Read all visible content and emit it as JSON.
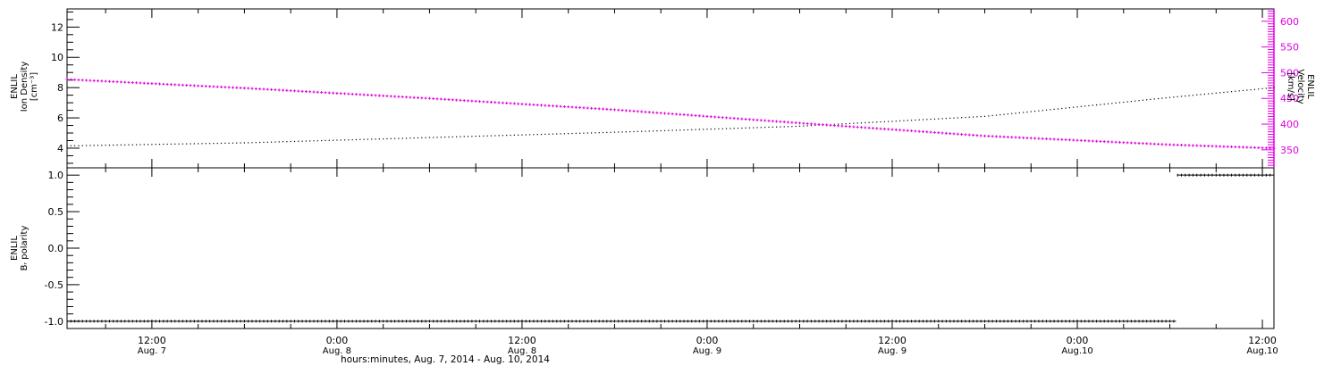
{
  "chart_data": [
    {
      "type": "scatter",
      "panel": "top",
      "x_unit": "hours since Aug. 7, 2014 00:00 UT",
      "xlim": [
        6.5,
        84.75
      ],
      "left_axis": {
        "label_lines": [
          "ENLIL",
          "Ion Density",
          "[cm⁻³]"
        ],
        "ylim": [
          2.7,
          13.2
        ],
        "ticks": [
          4,
          6,
          8,
          10,
          12
        ],
        "tick_labels": [
          "4",
          "6",
          "8",
          "10",
          "12"
        ]
      },
      "right_axis": {
        "label_lines": [
          "ENLIL",
          "Velocity",
          "[km/s]"
        ],
        "ylim": [
          315,
          624
        ],
        "ticks": [
          350,
          400,
          450,
          500,
          550,
          600
        ],
        "tick_labels": [
          "350",
          "400",
          "450",
          "500",
          "550",
          "600"
        ],
        "color": "#e000e0"
      },
      "series": [
        {
          "axis": "left",
          "color": "#000000",
          "points": [
            [
              6.5,
              4.15
            ],
            [
              18,
              4.35
            ],
            [
              30,
              4.7
            ],
            [
              42,
              5.05
            ],
            [
              54,
              5.45
            ],
            [
              66,
              6.1
            ],
            [
              78,
              7.35
            ],
            [
              84.75,
              8.0
            ]
          ]
        },
        {
          "axis": "right",
          "color": "#e000e0",
          "points": [
            [
              6.5,
              487
            ],
            [
              18,
              470
            ],
            [
              30,
              450
            ],
            [
              42,
              428
            ],
            [
              54,
              402
            ],
            [
              66,
              377
            ],
            [
              78,
              360
            ],
            [
              84.75,
              353
            ]
          ]
        }
      ]
    },
    {
      "type": "scatter",
      "panel": "bottom",
      "x_unit": "hours since Aug. 7, 2014 00:00 UT",
      "xlim": [
        6.5,
        84.75
      ],
      "left_axis": {
        "label_lines": [
          "ENLIL",
          "Bᵣ polarity"
        ],
        "ylim": [
          -1.1,
          1.1
        ],
        "ticks": [
          -1.0,
          -0.5,
          0.0,
          0.5,
          1.0
        ],
        "tick_labels": [
          "-1.0",
          "-0.5",
          "0.0",
          "0.5",
          "1.0"
        ]
      },
      "series": [
        {
          "color": "#000000",
          "segments": [
            {
              "x_start": 6.5,
              "x_end": 78.4,
              "y": -1.0
            },
            {
              "x_start": 78.5,
              "x_end": 84.75,
              "y": 1.0
            }
          ]
        }
      ]
    }
  ],
  "x_axis": {
    "tick_hours": [
      12,
      24,
      36,
      48,
      60,
      72,
      84
    ],
    "tick_labels": [
      {
        "time": "12:00",
        "date": "Aug. 7"
      },
      {
        "time": "0:00",
        "date": "Aug. 8"
      },
      {
        "time": "12:00",
        "date": "Aug. 8"
      },
      {
        "time": "0:00",
        "date": "Aug. 9"
      },
      {
        "time": "12:00",
        "date": "Aug. 9"
      },
      {
        "time": "0:00",
        "date": "Aug.10"
      },
      {
        "time": "12:00",
        "date": "Aug.10"
      }
    ],
    "title": "hours:minutes, Aug.  7, 2014 - Aug. 10, 2014"
  }
}
